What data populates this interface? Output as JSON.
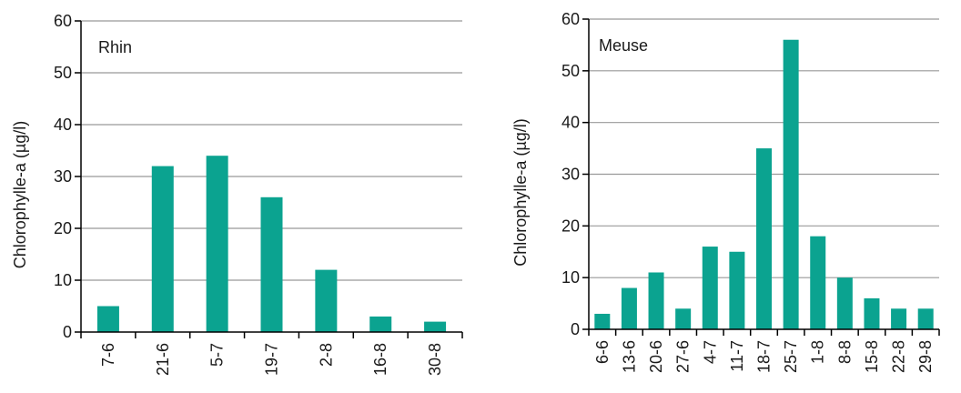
{
  "colors": {
    "bar": "#0ba390",
    "grid": "#999999",
    "axis": "#000000"
  },
  "chart_data": [
    {
      "type": "bar",
      "title": "Rhin",
      "xlabel": "",
      "ylabel": "Chlorophylle-a (µg/l)",
      "ylim": [
        0,
        60
      ],
      "yticks": [
        "0",
        "10",
        "20",
        "30",
        "40",
        "50",
        "60"
      ],
      "grid": true,
      "categories": [
        "7-6",
        "21-6",
        "5-7",
        "19-7",
        "2-8",
        "16-8",
        "30-8"
      ],
      "values": [
        5,
        32,
        34,
        26,
        12,
        3,
        2
      ]
    },
    {
      "type": "bar",
      "title": "Meuse",
      "xlabel": "",
      "ylabel": "Chlorophylle-a (µg/l)",
      "ylim": [
        0,
        60
      ],
      "yticks": [
        "0",
        "10",
        "20",
        "30",
        "40",
        "50",
        "60"
      ],
      "grid": true,
      "categories": [
        "6-6",
        "13-6",
        "20-6",
        "27-6",
        "4-7",
        "11-7",
        "18-7",
        "25-7",
        "1-8",
        "8-8",
        "15-8",
        "22-8",
        "29-8"
      ],
      "values": [
        3,
        8,
        11,
        4,
        16,
        15,
        35,
        56,
        18,
        10,
        6,
        4,
        4
      ]
    }
  ]
}
